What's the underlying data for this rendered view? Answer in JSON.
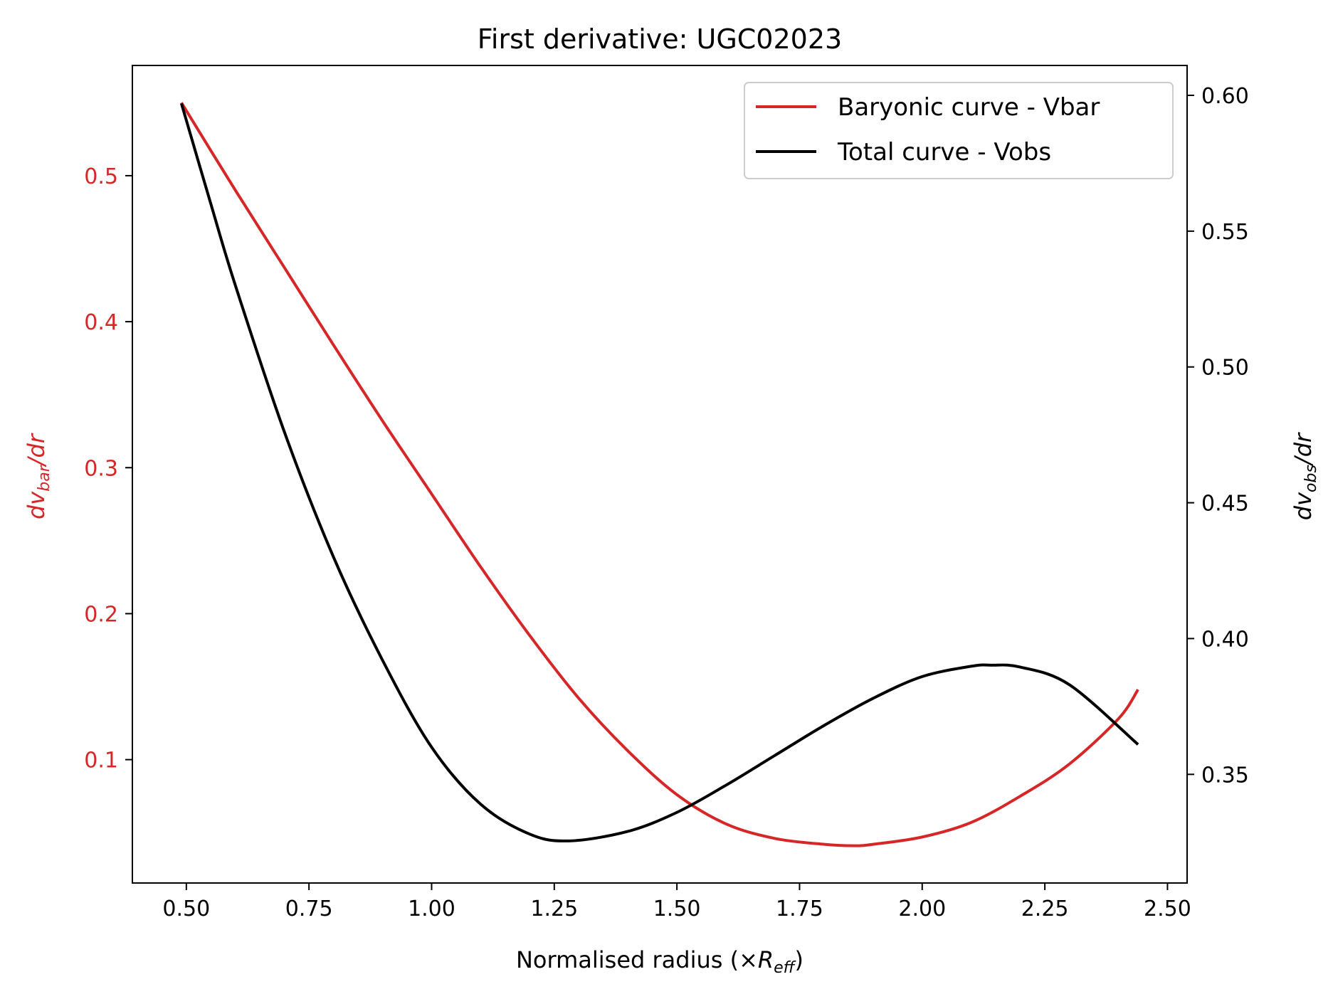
{
  "colors": {
    "bar": "#d62728",
    "obs": "#000000",
    "axes": "#000000",
    "background": "#ffffff"
  },
  "chart_data": {
    "type": "line",
    "title": "First derivative: UGC02023",
    "xlabel": {
      "main": "Normalised radius (×",
      "var": "R",
      "sub": "eff",
      "close": ")"
    },
    "ylabel_left": {
      "pre": "dv",
      "sub": "bar",
      "post": "/dr"
    },
    "ylabel_right": {
      "pre": "dv",
      "sub": "obs",
      "post": "/dr"
    },
    "xlim": [
      0.39,
      2.54
    ],
    "ylim_left": [
      0.0155,
      0.5755
    ],
    "ylim_right": [
      0.31,
      0.611
    ],
    "xticks": [
      0.5,
      0.75,
      1.0,
      1.25,
      1.5,
      1.75,
      2.0,
      2.25,
      2.5
    ],
    "xtick_labels": [
      "0.50",
      "0.75",
      "1.00",
      "1.25",
      "1.50",
      "1.75",
      "2.00",
      "2.25",
      "2.50"
    ],
    "yticks_left": [
      0.1,
      0.2,
      0.3,
      0.4,
      0.5
    ],
    "ytick_labels_left": [
      "0.1",
      "0.2",
      "0.3",
      "0.4",
      "0.5"
    ],
    "yticks_right": [
      0.35,
      0.4,
      0.45,
      0.5,
      0.55,
      0.6
    ],
    "ytick_labels_right": [
      "0.35",
      "0.40",
      "0.45",
      "0.50",
      "0.55",
      "0.60"
    ],
    "legend": {
      "position": "upper right",
      "entries": [
        "Baryonic curve - Vbar",
        "Total curve - Vobs"
      ]
    },
    "grid": false,
    "series": [
      {
        "name": "Baryonic curve - Vbar",
        "axis": "left",
        "x": [
          0.49,
          0.6,
          0.7,
          0.8,
          0.9,
          1.0,
          1.1,
          1.2,
          1.3,
          1.4,
          1.5,
          1.6,
          1.7,
          1.8,
          1.86,
          1.9,
          2.0,
          2.1,
          2.2,
          2.3,
          2.4,
          2.44
        ],
        "y": [
          0.55,
          0.49,
          0.437,
          0.384,
          0.332,
          0.282,
          0.232,
          0.185,
          0.142,
          0.106,
          0.076,
          0.056,
          0.046,
          0.042,
          0.041,
          0.042,
          0.047,
          0.057,
          0.075,
          0.097,
          0.128,
          0.148
        ]
      },
      {
        "name": "Total curve - Vobs",
        "axis": "right",
        "x": [
          0.49,
          0.55,
          0.6,
          0.7,
          0.8,
          0.9,
          1.0,
          1.1,
          1.2,
          1.28,
          1.4,
          1.5,
          1.6,
          1.7,
          1.8,
          1.9,
          2.0,
          2.1,
          2.14,
          2.2,
          2.3,
          2.44
        ],
        "y": [
          0.597,
          0.56,
          0.53,
          0.476,
          0.43,
          0.392,
          0.36,
          0.339,
          0.328,
          0.3255,
          0.329,
          0.336,
          0.346,
          0.357,
          0.368,
          0.378,
          0.386,
          0.3898,
          0.3902,
          0.3895,
          0.383,
          0.361
        ]
      }
    ]
  }
}
